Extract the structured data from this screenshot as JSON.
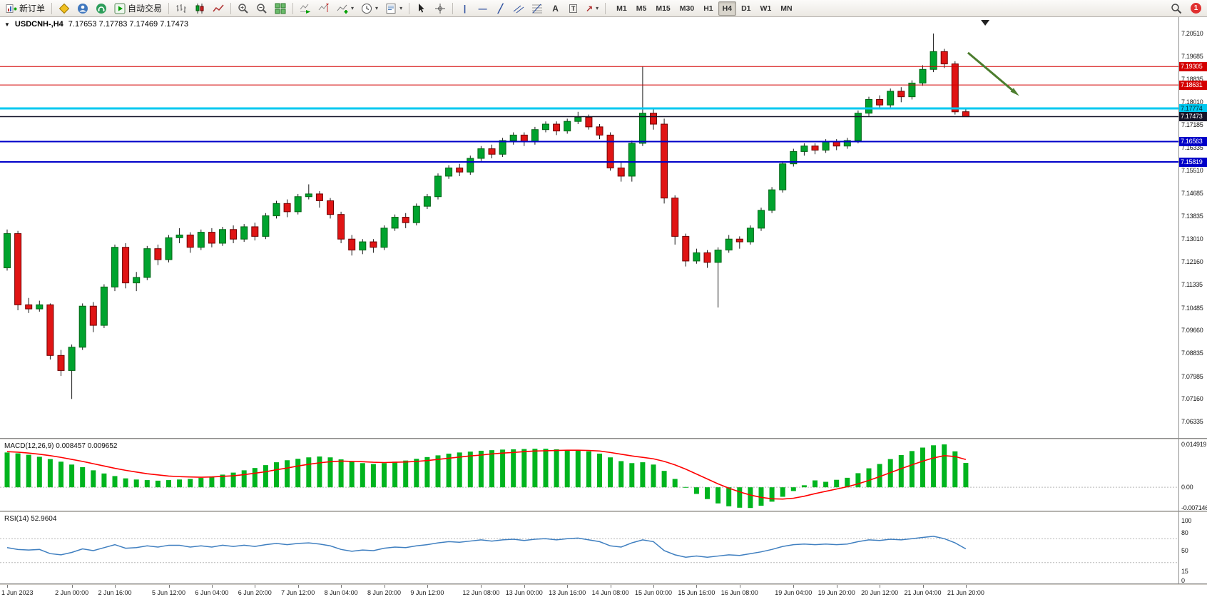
{
  "toolbar": {
    "new_order_label": "新订单",
    "auto_trading_label": "自动交易",
    "timeframes": [
      "M1",
      "M5",
      "M15",
      "M30",
      "H1",
      "H4",
      "D1",
      "W1",
      "MN"
    ],
    "active_timeframe": "H4",
    "notification_count": "1"
  },
  "icons": {
    "title_dropdown": "▼",
    "dropdown_caret": "▾",
    "vline_tool": "|",
    "hline_tool": "—",
    "trendline_tool": "╱",
    "text_tool": "A",
    "label_tool": "T",
    "arrows_tool": "↗"
  },
  "chart": {
    "symbol_period": "USDCNH-,H4",
    "ohlc": "7.17653 7.17783 7.17469 7.17473"
  },
  "chart_data": {
    "type": "candlestick",
    "symbol": "USDCNH-",
    "period": "H4",
    "candles_ylim": [
      7.06335,
      7.2051
    ],
    "price_axis": [
      "7.20510",
      "7.19685",
      "7.18835",
      "7.18010",
      "7.17185",
      "7.16335",
      "7.15510",
      "7.14685",
      "7.13835",
      "7.13010",
      "7.12160",
      "7.11335",
      "7.10485",
      "7.09660",
      "7.08835",
      "7.07985",
      "7.07160",
      "7.06335"
    ],
    "colors": {
      "up": "#00a32e",
      "up_border": "#006414",
      "down": "#e01414",
      "down_border": "#6e0000",
      "wick": "#1a1a1a"
    },
    "hlines": [
      {
        "price": 7.19305,
        "label": "7.19305",
        "color": "#d40000",
        "width": 1,
        "tag_fg": "#ffffff"
      },
      {
        "price": 7.18631,
        "label": "7.18631",
        "color": "#d40000",
        "width": 1,
        "tag_fg": "#ffffff"
      },
      {
        "price": 7.17774,
        "label": "7.17774",
        "color": "#00c8f0",
        "width": 3,
        "tag_fg": "#002832"
      },
      {
        "price": 7.17473,
        "label": "7.17473",
        "color": "#15152a",
        "width": 1.5,
        "tag_fg": "#ffffff"
      },
      {
        "price": 7.16563,
        "label": "7.16563",
        "color": "#0000c8",
        "width": 2,
        "tag_fg": "#ffffff"
      },
      {
        "price": 7.15819,
        "label": "7.15819",
        "color": "#0000c8",
        "width": 2,
        "tag_fg": "#ffffff"
      }
    ],
    "arrow_annotation": {
      "from_bar": 89.2,
      "from_price": 7.1981,
      "to_bar": 93.6,
      "to_price": 7.1835,
      "color": "#4c7d2e"
    },
    "scroll_marker_bar": 90.8,
    "candles": [
      [
        7.1195,
        7.1335,
        7.1185,
        7.132
      ],
      [
        7.132,
        7.133,
        7.104,
        7.106
      ],
      [
        7.106,
        7.1085,
        7.103,
        7.1045
      ],
      [
        7.1045,
        7.1075,
        7.1035,
        7.106
      ],
      [
        7.106,
        7.1065,
        7.086,
        7.0875
      ],
      [
        7.0875,
        7.0895,
        7.08,
        7.082
      ],
      [
        7.082,
        7.0915,
        7.0716,
        7.0905
      ],
      [
        7.0905,
        7.1065,
        7.0895,
        7.1055
      ],
      [
        7.1055,
        7.107,
        7.096,
        7.0985
      ],
      [
        7.0985,
        7.1135,
        7.0975,
        7.1125
      ],
      [
        7.1125,
        7.128,
        7.111,
        7.127
      ],
      [
        7.127,
        7.1285,
        7.112,
        7.114
      ],
      [
        7.114,
        7.118,
        7.111,
        7.116
      ],
      [
        7.116,
        7.1275,
        7.115,
        7.1265
      ],
      [
        7.1265,
        7.128,
        7.1205,
        7.1225
      ],
      [
        7.1225,
        7.1315,
        7.1215,
        7.1305
      ],
      [
        7.1305,
        7.134,
        7.1285,
        7.1315
      ],
      [
        7.1315,
        7.1325,
        7.125,
        7.127
      ],
      [
        7.127,
        7.1335,
        7.126,
        7.1325
      ],
      [
        7.1325,
        7.134,
        7.127,
        7.1285
      ],
      [
        7.1285,
        7.1345,
        7.1275,
        7.1335
      ],
      [
        7.1335,
        7.135,
        7.1285,
        7.13
      ],
      [
        7.13,
        7.1355,
        7.129,
        7.1345
      ],
      [
        7.1345,
        7.136,
        7.1295,
        7.131
      ],
      [
        7.131,
        7.1395,
        7.13,
        7.1385
      ],
      [
        7.1385,
        7.144,
        7.1375,
        7.143
      ],
      [
        7.143,
        7.1445,
        7.138,
        7.14
      ],
      [
        7.14,
        7.1465,
        7.139,
        7.1455
      ],
      [
        7.1455,
        7.15,
        7.1445,
        7.1465
      ],
      [
        7.1465,
        7.1475,
        7.1415,
        7.144
      ],
      [
        7.144,
        7.145,
        7.1375,
        7.139
      ],
      [
        7.139,
        7.14,
        7.1285,
        7.13
      ],
      [
        7.13,
        7.1315,
        7.124,
        7.126
      ],
      [
        7.126,
        7.13,
        7.1245,
        7.129
      ],
      [
        7.129,
        7.13,
        7.125,
        7.127
      ],
      [
        7.127,
        7.135,
        7.126,
        7.134
      ],
      [
        7.134,
        7.139,
        7.133,
        7.138
      ],
      [
        7.138,
        7.1395,
        7.134,
        7.136
      ],
      [
        7.136,
        7.143,
        7.135,
        7.142
      ],
      [
        7.142,
        7.1465,
        7.141,
        7.1455
      ],
      [
        7.1455,
        7.154,
        7.1445,
        7.153
      ],
      [
        7.153,
        7.157,
        7.152,
        7.156
      ],
      [
        7.156,
        7.1575,
        7.153,
        7.1545
      ],
      [
        7.1545,
        7.1605,
        7.1535,
        7.1595
      ],
      [
        7.1595,
        7.164,
        7.1585,
        7.163
      ],
      [
        7.163,
        7.1645,
        7.1595,
        7.161
      ],
      [
        7.161,
        7.167,
        7.16,
        7.166
      ],
      [
        7.166,
        7.169,
        7.1645,
        7.168
      ],
      [
        7.168,
        7.169,
        7.164,
        7.1655
      ],
      [
        7.1655,
        7.171,
        7.1645,
        7.17
      ],
      [
        7.17,
        7.173,
        7.169,
        7.172
      ],
      [
        7.172,
        7.173,
        7.168,
        7.1695
      ],
      [
        7.1695,
        7.174,
        7.1685,
        7.173
      ],
      [
        7.173,
        7.1765,
        7.172,
        7.1745
      ],
      [
        7.1745,
        7.1755,
        7.17,
        7.171
      ],
      [
        7.171,
        7.172,
        7.1665,
        7.168
      ],
      [
        7.168,
        7.169,
        7.155,
        7.156
      ],
      [
        7.156,
        7.158,
        7.151,
        7.153
      ],
      [
        7.153,
        7.166,
        7.151,
        7.165
      ],
      [
        7.165,
        7.193,
        7.164,
        7.176
      ],
      [
        7.176,
        7.178,
        7.17,
        7.172
      ],
      [
        7.172,
        7.174,
        7.143,
        7.145
      ],
      [
        7.145,
        7.146,
        7.128,
        7.131
      ],
      [
        7.131,
        7.132,
        7.12,
        7.122
      ],
      [
        7.122,
        7.1265,
        7.121,
        7.125
      ],
      [
        7.125,
        7.126,
        7.1195,
        7.1215
      ],
      [
        7.1215,
        7.127,
        7.105,
        7.126
      ],
      [
        7.126,
        7.1315,
        7.125,
        7.13
      ],
      [
        7.13,
        7.131,
        7.1265,
        7.129
      ],
      [
        7.129,
        7.135,
        7.128,
        7.134
      ],
      [
        7.134,
        7.1415,
        7.133,
        7.1405
      ],
      [
        7.1405,
        7.149,
        7.1395,
        7.148
      ],
      [
        7.148,
        7.1585,
        7.147,
        7.1575
      ],
      [
        7.1575,
        7.163,
        7.1565,
        7.162
      ],
      [
        7.162,
        7.165,
        7.1605,
        7.164
      ],
      [
        7.164,
        7.165,
        7.161,
        7.1625
      ],
      [
        7.1625,
        7.1665,
        7.1615,
        7.1655
      ],
      [
        7.1655,
        7.1665,
        7.1625,
        7.164
      ],
      [
        7.164,
        7.167,
        7.163,
        7.166
      ],
      [
        7.166,
        7.177,
        7.165,
        7.176
      ],
      [
        7.176,
        7.182,
        7.175,
        7.181
      ],
      [
        7.181,
        7.1825,
        7.1775,
        7.179
      ],
      [
        7.179,
        7.185,
        7.178,
        7.184
      ],
      [
        7.184,
        7.1855,
        7.18,
        7.182
      ],
      [
        7.182,
        7.188,
        7.181,
        7.187
      ],
      [
        7.187,
        7.1935,
        7.186,
        7.192
      ],
      [
        7.192,
        7.2051,
        7.191,
        7.1985
      ],
      [
        7.1985,
        7.1995,
        7.1925,
        7.194
      ],
      [
        7.194,
        7.195,
        7.1755,
        7.1765
      ],
      [
        7.17653,
        7.17783,
        7.17469,
        7.17473
      ]
    ],
    "macd": {
      "label": "MACD(12,26,9) 0.008457 0.009652",
      "ylim": [
        -0.007146,
        0.014919
      ],
      "axis": [
        {
          "v": 0.014919,
          "t": "0.014919"
        },
        {
          "v": 0,
          "t": "0.00"
        },
        {
          "v": -0.007146,
          "t": "-0.007146"
        }
      ],
      "hist_color": "#00b41e",
      "signal_color": "#ff0000",
      "histogram": [
        0.0121,
        0.0118,
        0.0113,
        0.0106,
        0.0098,
        0.0089,
        0.0079,
        0.007,
        0.0059,
        0.0048,
        0.0039,
        0.0031,
        0.0027,
        0.0025,
        0.0023,
        0.0025,
        0.0027,
        0.0029,
        0.0033,
        0.0038,
        0.0044,
        0.0051,
        0.0059,
        0.0067,
        0.0077,
        0.0087,
        0.0094,
        0.0099,
        0.0104,
        0.0107,
        0.0104,
        0.0097,
        0.0089,
        0.0084,
        0.0081,
        0.0084,
        0.0089,
        0.0093,
        0.0099,
        0.0105,
        0.0111,
        0.0117,
        0.0121,
        0.0124,
        0.0127,
        0.0129,
        0.0131,
        0.0132,
        0.0133,
        0.0134,
        0.0134,
        0.0132,
        0.013,
        0.0129,
        0.0125,
        0.0117,
        0.0104,
        0.0091,
        0.0084,
        0.0087,
        0.0079,
        0.0057,
        0.0029,
        0.0001,
        -0.0023,
        -0.0041,
        -0.0056,
        -0.0066,
        -0.0071,
        -0.0072,
        -0.0064,
        -0.005,
        -0.0033,
        -0.0013,
        0.0007,
        0.0024,
        0.0019,
        0.0026,
        0.0033,
        0.0049,
        0.0066,
        0.0081,
        0.0098,
        0.0112,
        0.0126,
        0.0138,
        0.0146,
        0.0149,
        0.0125,
        0.008457
      ],
      "signal": [
        0.0124,
        0.0122,
        0.0119,
        0.0115,
        0.011,
        0.0104,
        0.0097,
        0.009,
        0.0082,
        0.0074,
        0.0066,
        0.0059,
        0.0053,
        0.0047,
        0.0043,
        0.0039,
        0.0037,
        0.0036,
        0.0035,
        0.0036,
        0.0038,
        0.004,
        0.0044,
        0.0049,
        0.0054,
        0.0061,
        0.0067,
        0.0074,
        0.008,
        0.0085,
        0.0089,
        0.0091,
        0.009,
        0.0089,
        0.0087,
        0.0086,
        0.0087,
        0.0088,
        0.009,
        0.0093,
        0.0097,
        0.0101,
        0.0105,
        0.0109,
        0.0112,
        0.0116,
        0.0119,
        0.0121,
        0.0124,
        0.0126,
        0.0127,
        0.0128,
        0.0129,
        0.0129,
        0.0128,
        0.0126,
        0.0121,
        0.0115,
        0.0109,
        0.0104,
        0.0099,
        0.009,
        0.0078,
        0.0063,
        0.0046,
        0.0029,
        0.0012,
        -0.0003,
        -0.0016,
        -0.0027,
        -0.0035,
        -0.004,
        -0.0041,
        -0.0038,
        -0.0031,
        -0.0022,
        -0.0014,
        -0.0006,
        0.0002,
        0.0012,
        0.0024,
        0.0037,
        0.0051,
        0.0065,
        0.0078,
        0.0091,
        0.0102,
        0.011,
        0.0107,
        0.009652
      ]
    },
    "rsi": {
      "label": "RSI(14) 52.9604",
      "ylim": [
        0,
        100
      ],
      "axis": [
        {
          "v": 100,
          "t": "100"
        },
        {
          "v": 80,
          "t": "80"
        },
        {
          "v": 50,
          "t": "50"
        },
        {
          "v": 15,
          "t": "15"
        },
        {
          "v": 0,
          "t": "0"
        }
      ],
      "levels": [
        70,
        30
      ],
      "line_color": "#3f7fc0",
      "values": [
        55,
        52,
        51,
        52,
        45,
        43,
        47,
        53,
        50,
        55,
        60,
        54,
        55,
        58,
        56,
        59,
        59,
        56,
        58,
        56,
        59,
        57,
        59,
        57,
        60,
        62,
        60,
        62,
        63,
        61,
        58,
        52,
        49,
        51,
        50,
        54,
        56,
        55,
        58,
        60,
        63,
        65,
        64,
        66,
        68,
        66,
        68,
        69,
        67,
        69,
        70,
        68,
        70,
        71,
        68,
        65,
        58,
        56,
        63,
        68,
        65,
        50,
        43,
        39,
        41,
        39,
        41,
        43,
        42,
        45,
        48,
        52,
        57,
        60,
        61,
        60,
        61,
        60,
        61,
        65,
        68,
        67,
        69,
        68,
        70,
        72,
        74,
        70,
        63,
        52.9604
      ]
    },
    "time_axis": [
      {
        "t": "1 Jun 2023",
        "bar": 0
      },
      {
        "t": "2 Jun 00:00",
        "bar": 6
      },
      {
        "t": "2 Jun 16:00",
        "bar": 10
      },
      {
        "t": "5 Jun 12:00",
        "bar": 15
      },
      {
        "t": "6 Jun 04:00",
        "bar": 19
      },
      {
        "t": "6 Jun 20:00",
        "bar": 23
      },
      {
        "t": "7 Jun 12:00",
        "bar": 27
      },
      {
        "t": "8 Jun 04:00",
        "bar": 31
      },
      {
        "t": "8 Jun 20:00",
        "bar": 35
      },
      {
        "t": "9 Jun 12:00",
        "bar": 39
      },
      {
        "t": "12 Jun 08:00",
        "bar": 44
      },
      {
        "t": "13 Jun 00:00",
        "bar": 48
      },
      {
        "t": "13 Jun 16:00",
        "bar": 52
      },
      {
        "t": "14 Jun 08:00",
        "bar": 56
      },
      {
        "t": "15 Jun 00:00",
        "bar": 60
      },
      {
        "t": "15 Jun 16:00",
        "bar": 64
      },
      {
        "t": "16 Jun 08:00",
        "bar": 68
      },
      {
        "t": "19 Jun 04:00",
        "bar": 73
      },
      {
        "t": "19 Jun 20:00",
        "bar": 77
      },
      {
        "t": "20 Jun 12:00",
        "bar": 81
      },
      {
        "t": "21 Jun 04:00",
        "bar": 85
      },
      {
        "t": "21 Jun 20:00",
        "bar": 89
      }
    ]
  }
}
